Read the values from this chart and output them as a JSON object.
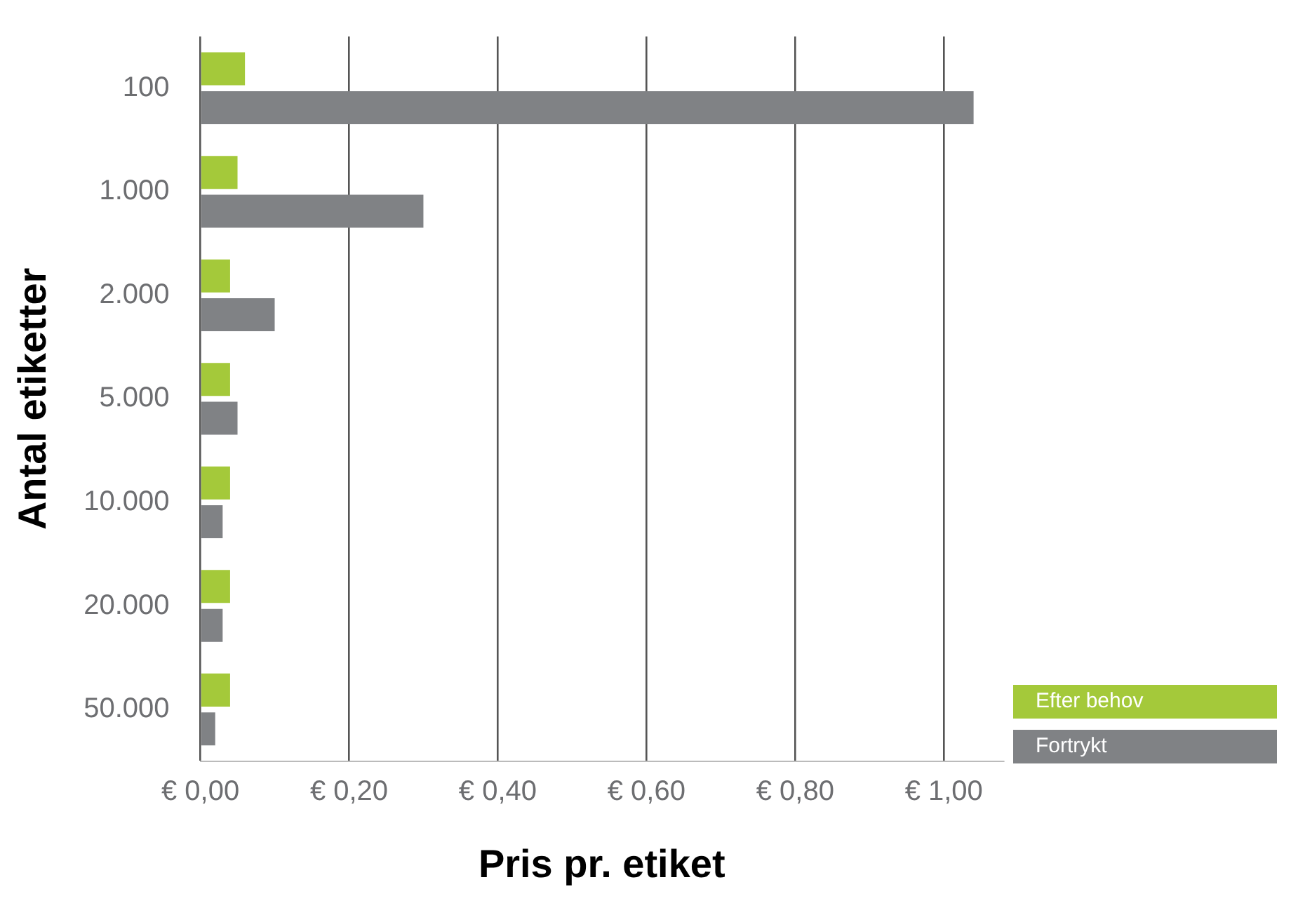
{
  "chart_data": {
    "type": "bar",
    "orientation": "horizontal",
    "xlabel": "Pris pr. etiket",
    "ylabel": "Antal etiketter",
    "categories": [
      "100",
      "1.000",
      "2.000",
      "5.000",
      "10.000",
      "20.000",
      "50.000"
    ],
    "series": [
      {
        "name": "Efter behov",
        "color": "#a4c93a",
        "values": [
          0.06,
          0.05,
          0.04,
          0.04,
          0.04,
          0.04,
          0.04
        ]
      },
      {
        "name": "Fortrykt",
        "color": "#808285",
        "values": [
          1.04,
          0.3,
          0.1,
          0.05,
          0.03,
          0.03,
          0.02
        ]
      }
    ],
    "xlim": [
      0,
      1.08
    ],
    "xticks": [
      {
        "value": 0,
        "label": "€ 0,00"
      },
      {
        "value": 0.2,
        "label": "€ 0,20"
      },
      {
        "value": 0.4,
        "label": "€ 0,40"
      },
      {
        "value": 0.6,
        "label": "€ 0,60"
      },
      {
        "value": 0.8,
        "label": "€ 0,80"
      },
      {
        "value": 1,
        "label": "€ 1,00"
      }
    ],
    "grid": "x",
    "legend": "bottom right"
  }
}
